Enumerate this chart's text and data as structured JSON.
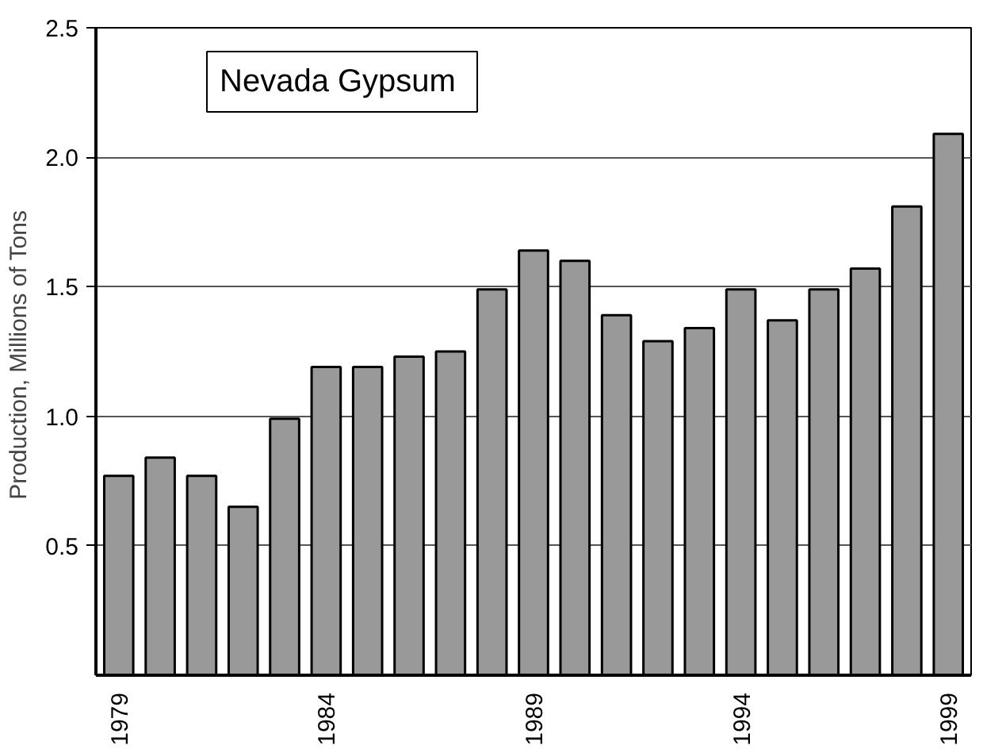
{
  "chart_data": {
    "type": "bar",
    "title": "Nevada  Gypsum",
    "ylabel": "Production,  Millions of Tons",
    "categories": [
      "1979",
      null,
      null,
      null,
      null,
      "1984",
      null,
      null,
      null,
      null,
      "1989",
      null,
      null,
      null,
      null,
      "1994",
      null,
      null,
      null,
      null,
      "1999"
    ],
    "values": [
      0.77,
      0.84,
      0.77,
      0.65,
      0.99,
      1.19,
      1.19,
      1.23,
      1.25,
      1.49,
      1.64,
      1.6,
      1.39,
      1.29,
      1.34,
      1.49,
      1.37,
      1.49,
      1.57,
      1.81,
      2.09
    ],
    "color": "#999999",
    "ylim": [
      0,
      2.5
    ],
    "yticks": [
      {
        "value": 0.5,
        "label": "0.5"
      },
      {
        "value": 1.0,
        "label": "1.0"
      },
      {
        "value": 1.5,
        "label": "1.5"
      },
      {
        "value": 2.0,
        "label": "2.0"
      },
      {
        "value": 2.5,
        "label": "2.5"
      }
    ],
    "grid": "y"
  }
}
